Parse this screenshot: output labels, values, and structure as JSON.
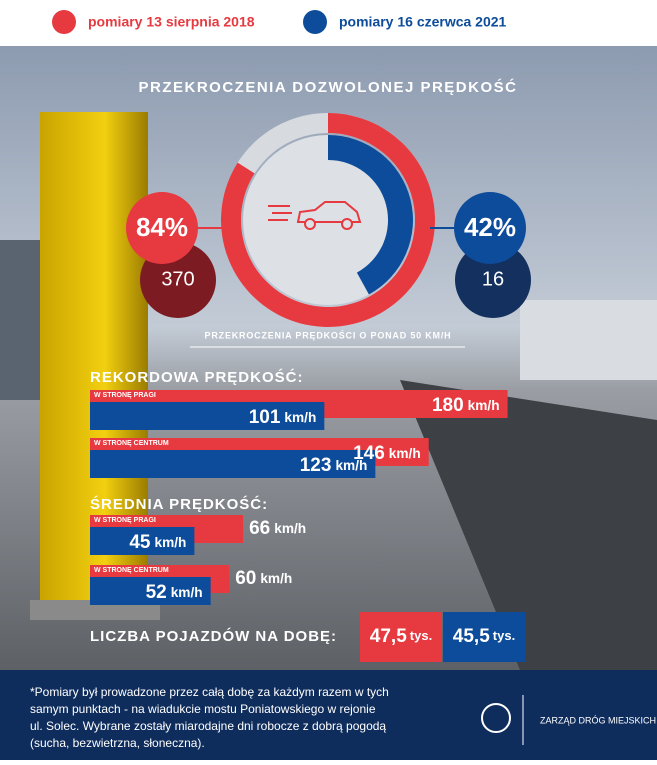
{
  "legend": [
    {
      "label": "pomiary 13 sierpnia 2018",
      "color": "#e63a40"
    },
    {
      "label": "pomiary 16 czerwca 2021",
      "color": "#0d4c9b"
    }
  ],
  "title": "PRZEKROCZENIA DOZWOLONEJ PRĘDKOŚĆ",
  "donut": {
    "type": "donut",
    "values": [
      84,
      42
    ],
    "value_labels": [
      "84%",
      "42%"
    ],
    "counts": [
      370,
      16
    ],
    "caption": "PRZEKROCZENIA PRĘDKOŚCI O PONAD 50 KM/H"
  },
  "unit": "km/h",
  "record": {
    "title": "REKORDOWA PRĘDKOŚĆ:",
    "rows": [
      {
        "label": "W STRONĘ PRAGI",
        "values": [
          180,
          101
        ]
      },
      {
        "label": "W STRONĘ CENTRUM",
        "values": [
          146,
          123
        ]
      }
    ]
  },
  "average": {
    "title": "ŚREDNIA PRĘDKOŚĆ:",
    "rows": [
      {
        "label": "W STRONĘ PRAGI",
        "values": [
          66,
          45
        ]
      },
      {
        "label": "W STRONĘ CENTRUM",
        "values": [
          60,
          52
        ]
      }
    ]
  },
  "vehicles": {
    "title": "LICZBA POJAZDÓW NA DOBĘ:",
    "values": [
      47.5,
      45.5
    ],
    "value_labels": [
      "47,5",
      "45,5"
    ],
    "unit": "tys."
  },
  "footer": {
    "lines": [
      "*Pomiary był prowadzone przez całą dobę za każdym razem w tych",
      "samym punktach - na wiadukcie mostu Poniatowskiego w rejonie",
      "ul. Solec. Wybrane zostały miarodajne dni robocze z dobrą pogodą",
      "(sucha, bezwietrzna, słoneczna)."
    ],
    "logo": "ZARZĄD DRÓG MIEJSKICH"
  }
}
